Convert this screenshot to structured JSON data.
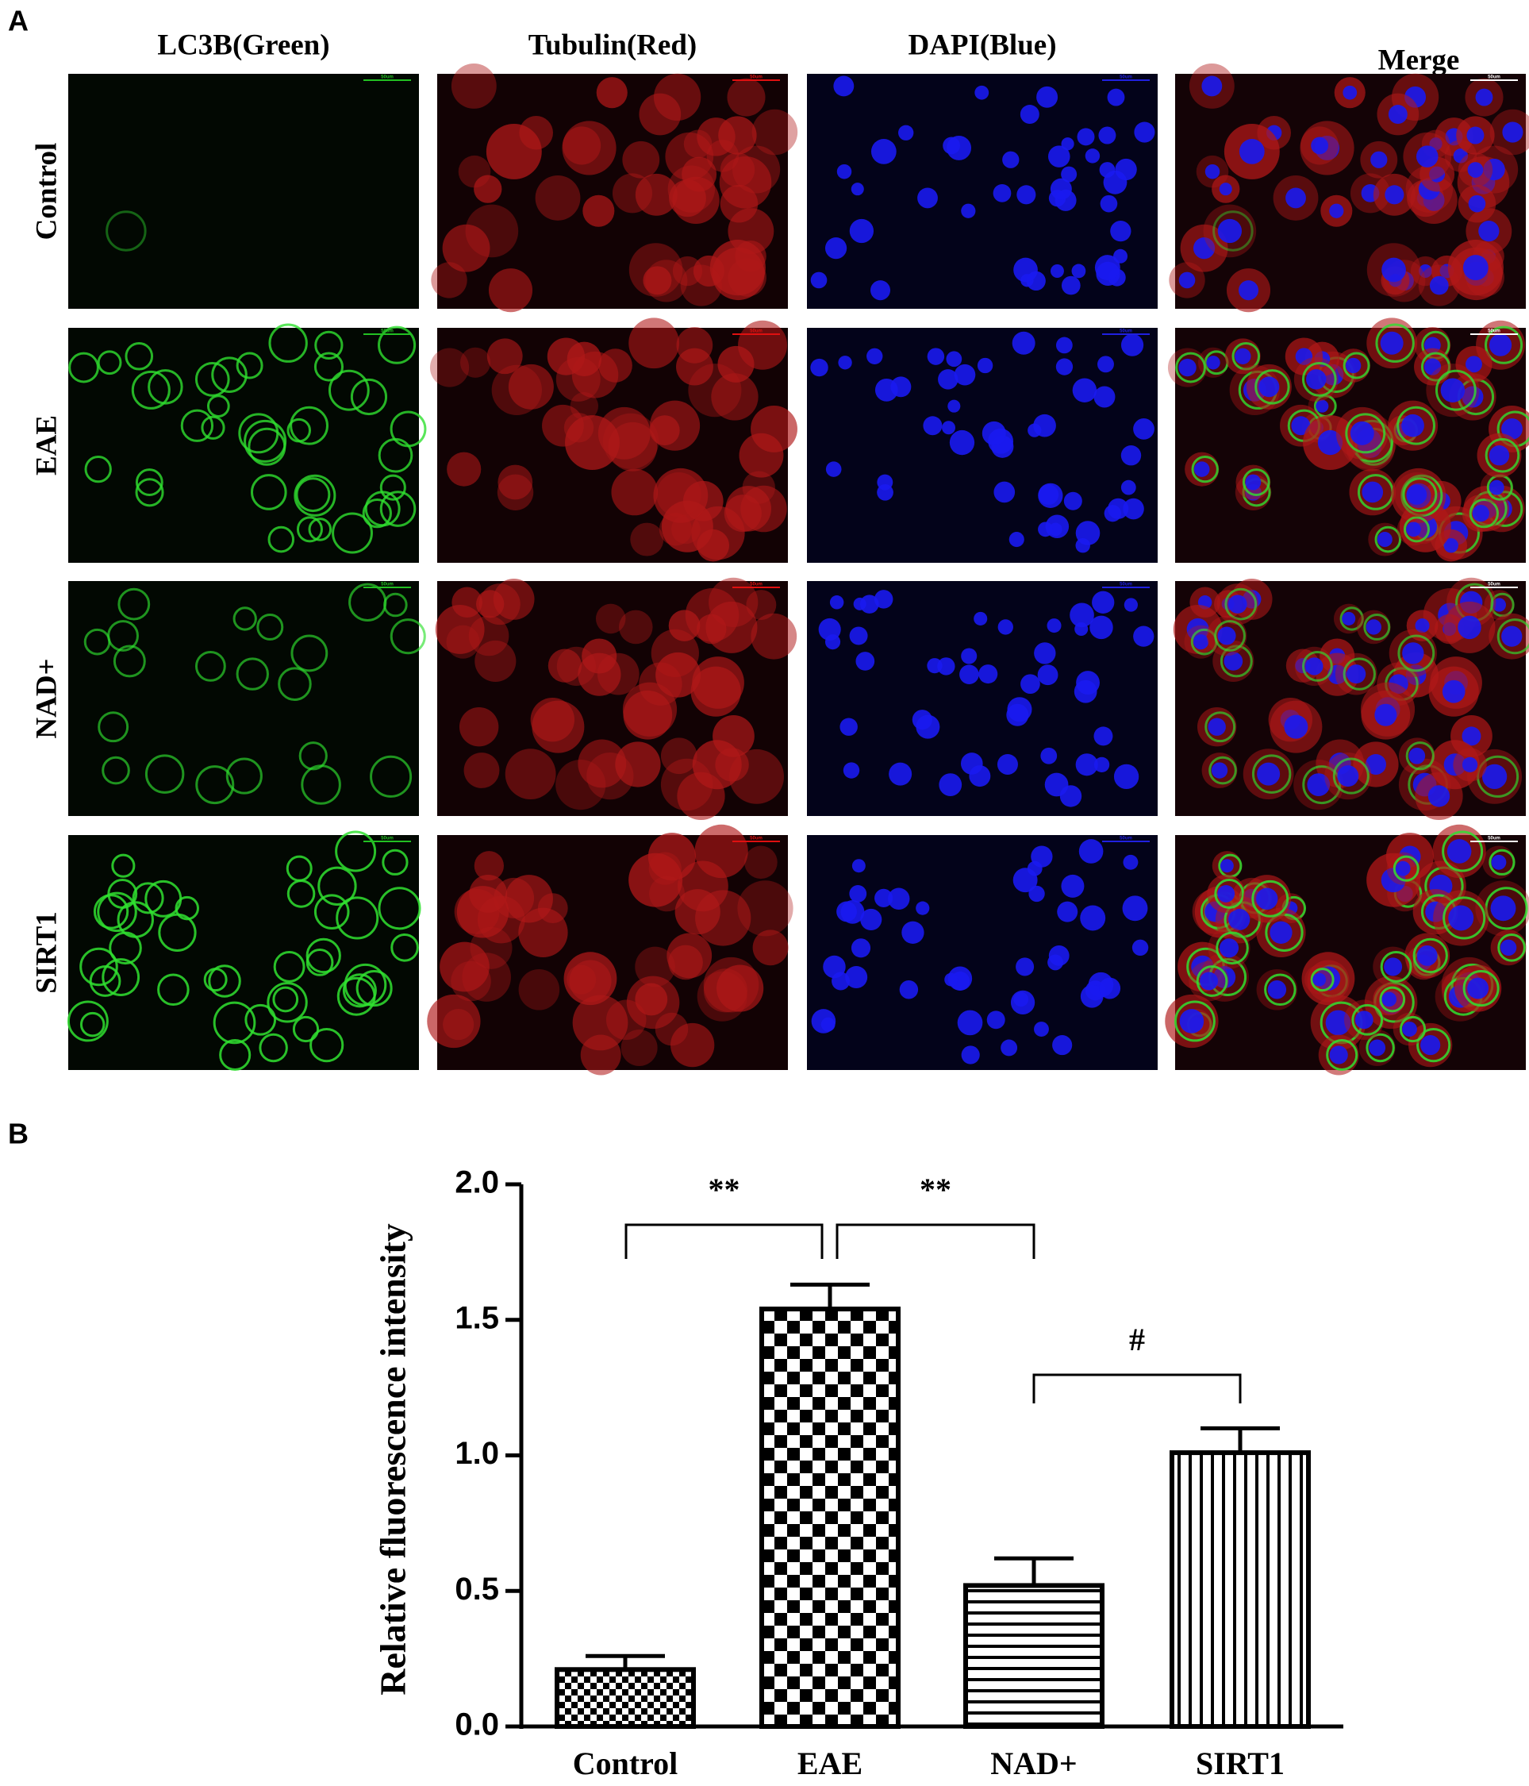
{
  "panel_labels": {
    "a": "A",
    "b": "B"
  },
  "panel_a": {
    "columns": [
      "LC3B(Green)",
      "Tubulin(Red)",
      "DAPI(Blue)",
      "Merge"
    ],
    "rows": [
      "Control",
      "EAE",
      "NAD+",
      "SIRT1"
    ],
    "scale_bar": "50um"
  },
  "chart_data": {
    "type": "bar",
    "y_label": "Relative fluorescence intensity",
    "categories": [
      "Control",
      "EAE",
      "NAD+",
      "SIRT1"
    ],
    "values": [
      0.21,
      1.54,
      0.52,
      1.01
    ],
    "errors": [
      0.05,
      0.09,
      0.1,
      0.09
    ],
    "color": "#000000",
    "ylim": [
      0,
      2
    ],
    "yticks": [
      {
        "value": 0,
        "label": "0.0"
      },
      0.5,
      {
        "value": 1,
        "label": "1.0"
      },
      1.5,
      {
        "value": 2,
        "label": "2.0"
      }
    ],
    "annotations": [
      "**",
      "**",
      "#"
    ]
  }
}
